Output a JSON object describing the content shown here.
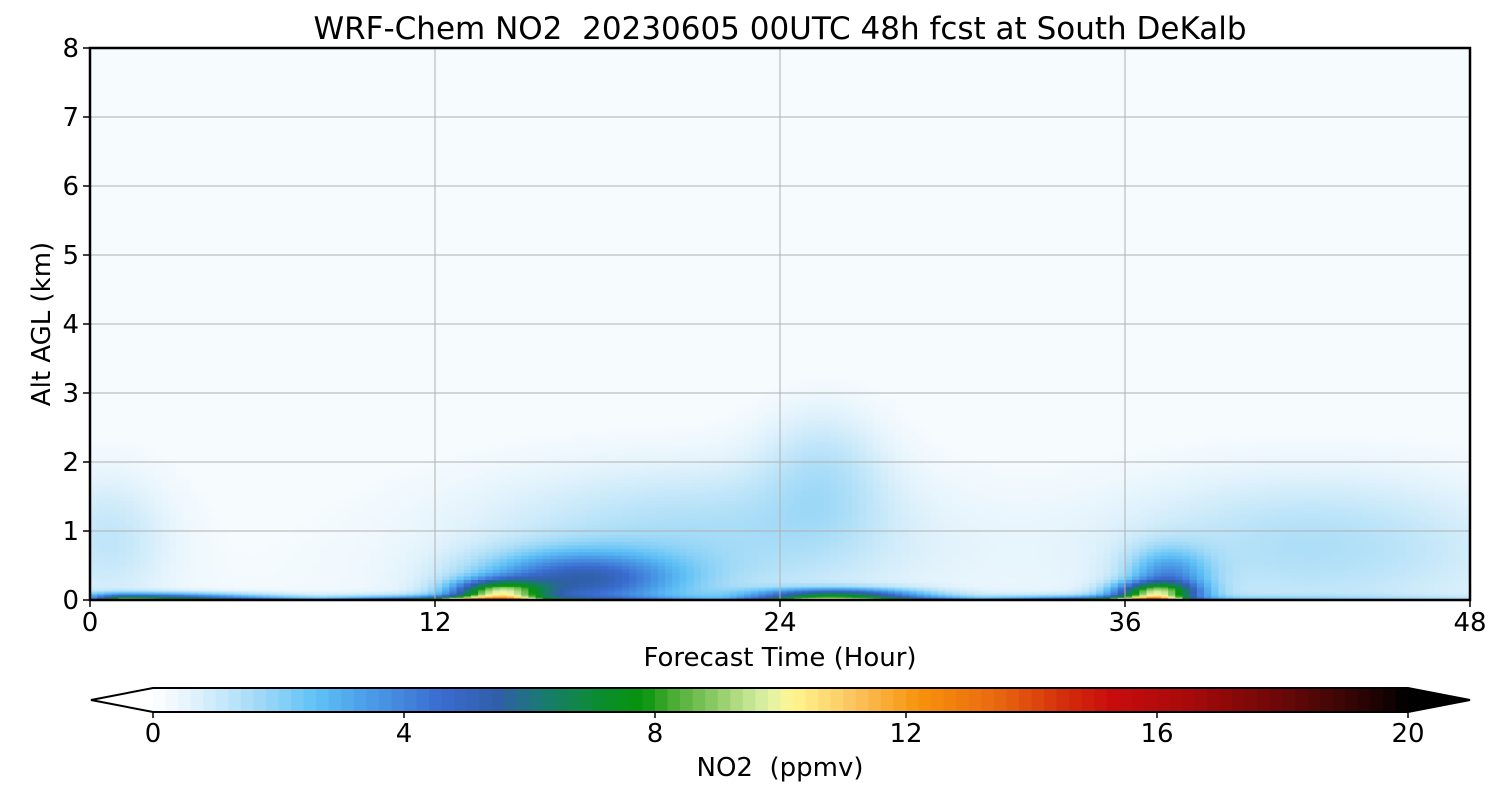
{
  "chart_data": {
    "type": "heatmap",
    "title": "WRF-Chem NO2  20230605 00UTC 48h fcst at South DeKalb",
    "xlabel": "Forecast Time (Hour)",
    "ylabel": "Alt AGL (km)",
    "xlim": [
      0,
      48
    ],
    "ylim": [
      0,
      8
    ],
    "x_ticks": [
      0,
      12,
      24,
      36,
      48
    ],
    "y_ticks": [
      0,
      1,
      2,
      3,
      4,
      5,
      6,
      7,
      8
    ],
    "grid": true,
    "colorbar": {
      "label": "NO2  (ppmv)",
      "range": [
        0,
        20
      ],
      "ticks": [
        0,
        4,
        8,
        12,
        16,
        20
      ],
      "extend": "both",
      "colors": [
        {
          "v": 0,
          "c": "#ffffff"
        },
        {
          "v": 0.6,
          "c": "#e3f3fc"
        },
        {
          "v": 1.6,
          "c": "#a7dcf7"
        },
        {
          "v": 2.6,
          "c": "#5fc1f6"
        },
        {
          "v": 3.4,
          "c": "#4b9ee8"
        },
        {
          "v": 4.6,
          "c": "#3a6cd0"
        },
        {
          "v": 5.5,
          "c": "#2f5fa8"
        },
        {
          "v": 6.2,
          "c": "#1a7a72"
        },
        {
          "v": 7.2,
          "c": "#0a8e2a"
        },
        {
          "v": 7.8,
          "c": "#06940c"
        },
        {
          "v": 8.3,
          "c": "#4cad34"
        },
        {
          "v": 9.2,
          "c": "#a6d67a"
        },
        {
          "v": 9.8,
          "c": "#e0f2a8"
        },
        {
          "v": 10.2,
          "c": "#fff68f"
        },
        {
          "v": 11.2,
          "c": "#fbc25c"
        },
        {
          "v": 12.2,
          "c": "#f7930c"
        },
        {
          "v": 13.4,
          "c": "#ea6a10"
        },
        {
          "v": 14.6,
          "c": "#d22a0c"
        },
        {
          "v": 15.3,
          "c": "#c80c0c"
        },
        {
          "v": 16.5,
          "c": "#a70a0a"
        },
        {
          "v": 18.0,
          "c": "#6a0808"
        },
        {
          "v": 19.2,
          "c": "#300505"
        },
        {
          "v": 20.0,
          "c": "#000000"
        }
      ]
    },
    "field": {
      "description_units": "ppmv",
      "blobs": [
        {
          "x": 21.0,
          "y": 0.9,
          "sx": 5.5,
          "sy": 0.75,
          "v": 1.4
        },
        {
          "x": 25.5,
          "y": 1.9,
          "sx": 1.6,
          "sy": 0.7,
          "v": 1.0
        },
        {
          "x": 42.5,
          "y": 0.8,
          "sx": 5.0,
          "sy": 0.75,
          "v": 1.3
        },
        {
          "x": 0.6,
          "y": 0.9,
          "sx": 1.6,
          "sy": 0.7,
          "v": 1.0
        },
        {
          "x": 17.0,
          "y": 0.3,
          "sx": 2.4,
          "sy": 0.28,
          "v": 4.4
        },
        {
          "x": 14.2,
          "y": 0.12,
          "sx": 1.1,
          "sy": 0.12,
          "v": 7.0
        },
        {
          "x": 37.5,
          "y": 0.3,
          "sx": 1.0,
          "sy": 0.3,
          "v": 3.2
        },
        {
          "x": 37.0,
          "y": 0.12,
          "sx": 1.0,
          "sy": 0.1,
          "v": 6.0
        },
        {
          "x": 26.0,
          "y": 0.08,
          "sx": 2.0,
          "sy": 0.07,
          "v": 5.0
        },
        {
          "x": 2.0,
          "y": 0.05,
          "sx": 2.5,
          "sy": 0.05,
          "v": 3.0
        }
      ],
      "surface_band": [
        {
          "x": 0,
          "v": 2
        },
        {
          "x": 1,
          "v": 12
        },
        {
          "x": 4,
          "v": 10
        },
        {
          "x": 8,
          "v": 6
        },
        {
          "x": 11,
          "v": 12
        },
        {
          "x": 13,
          "v": 17
        },
        {
          "x": 14.5,
          "v": 15
        },
        {
          "x": 16,
          "v": 6
        },
        {
          "x": 22,
          "v": 3
        },
        {
          "x": 25,
          "v": 12
        },
        {
          "x": 27,
          "v": 11
        },
        {
          "x": 31,
          "v": 6
        },
        {
          "x": 35,
          "v": 13
        },
        {
          "x": 37,
          "v": 18
        },
        {
          "x": 38.5,
          "v": 4
        },
        {
          "x": 48,
          "v": 2
        }
      ]
    }
  }
}
